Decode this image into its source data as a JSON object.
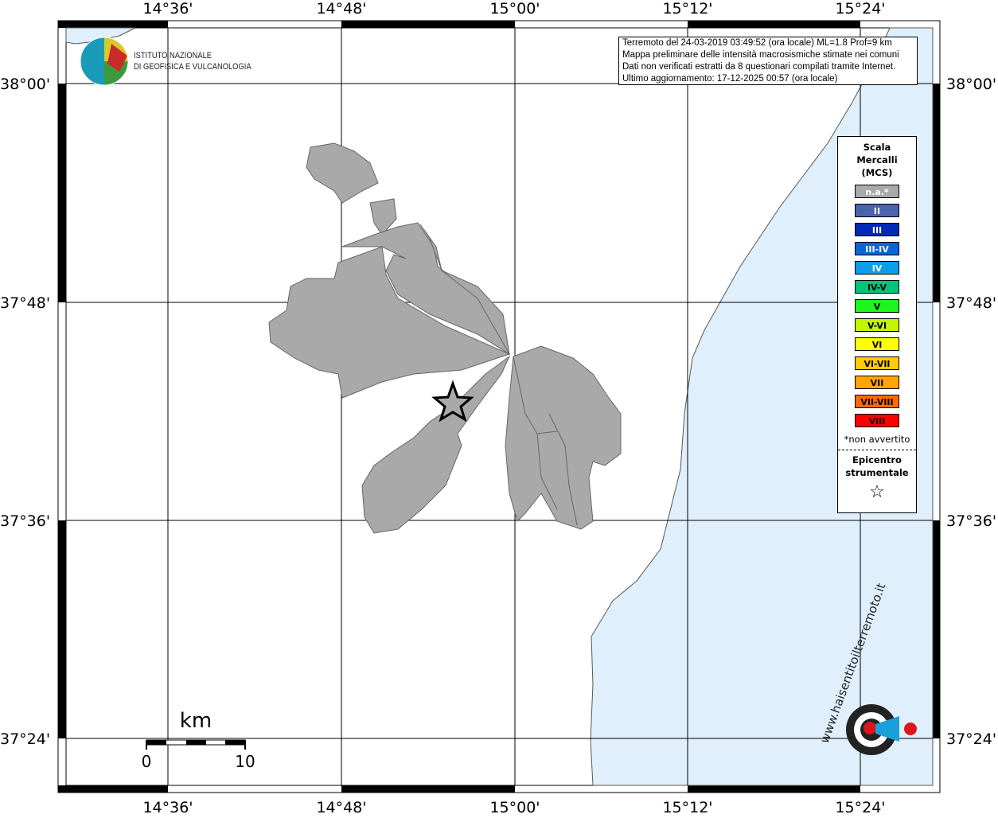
{
  "info_box": {
    "lines": [
      "Terremoto del 24-03-2019 03:49:52 (ora locale) ML=1.8 Prof=9 km",
      "Mappa preliminare delle intensità macrosismiche stimate nei comuni",
      "Dati non verificati estratti da 8 questionari compilati tramite Internet.",
      "Ultimo aggiornamento: 17-12-2025 00:57 (ora locale)"
    ]
  },
  "logo": {
    "line1": "ISTITUTO NAZIONALE",
    "line2": "DI GEOFISICA E VULCANOLOGIA"
  },
  "logo_bottom": {
    "text": "www.haisentitoilterremoto.it"
  },
  "axes": {
    "longitude_ticks": [
      "14°36'",
      "14°48'",
      "15°00'",
      "15°12'",
      "15°24'"
    ],
    "latitude_ticks": [
      "38°00'",
      "37°48'",
      "37°36'",
      "37°24'"
    ]
  },
  "scale_bar": {
    "unit": "km",
    "start": "0",
    "end": "10"
  },
  "legend": {
    "title": [
      "Scala",
      "Mercalli",
      "(MCS)"
    ],
    "items": [
      {
        "label": "n.a.*",
        "color": "#a9a9a9",
        "text_color": "#ffffff"
      },
      {
        "label": "II",
        "color": "#4a64ac",
        "text_color": "#ffffff"
      },
      {
        "label": "III",
        "color": "#0029b8",
        "text_color": "#ffffff"
      },
      {
        "label": "III-IV",
        "color": "#0666d6",
        "text_color": "#ffffff"
      },
      {
        "label": "IV",
        "color": "#0a9eea",
        "text_color": "#ffffff"
      },
      {
        "label": "IV-V",
        "color": "#00c47a",
        "text_color": "#000000"
      },
      {
        "label": "V",
        "color": "#1ef41e",
        "text_color": "#000000"
      },
      {
        "label": "V-VI",
        "color": "#c4f500",
        "text_color": "#000000"
      },
      {
        "label": "VI",
        "color": "#ffff00",
        "text_color": "#000000"
      },
      {
        "label": "VI-VII",
        "color": "#ffcc00",
        "text_color": "#000000"
      },
      {
        "label": "VII",
        "color": "#ffa500",
        "text_color": "#000000"
      },
      {
        "label": "VII-VIII",
        "color": "#ff6a00",
        "text_color": "#000000"
      },
      {
        "label": "VIII",
        "color": "#ff0000",
        "text_color": "#000000"
      }
    ],
    "note": "*non avvertito",
    "epicenter_label": [
      "Epicentro",
      "strumentale"
    ],
    "epicenter_symbol": "☆"
  },
  "colors": {
    "sea": "#dff0fc",
    "municipality_na": "#a9a9a9"
  }
}
